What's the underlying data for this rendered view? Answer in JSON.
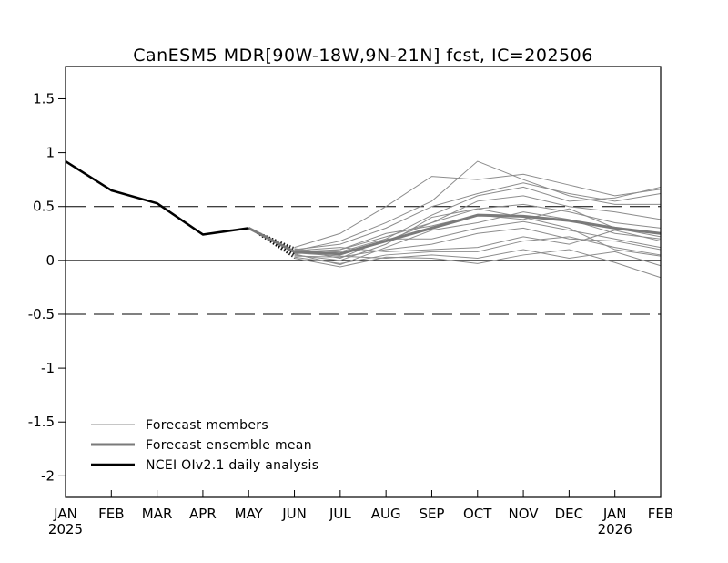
{
  "chart_data": {
    "type": "line",
    "title": "CanESM5 MDR[90W-18W,9N-21N] fcst, IC=202506",
    "xlabel": "",
    "ylabel": "",
    "ylim": [
      -2.2,
      1.8
    ],
    "yticks": [
      1.5,
      1,
      0.5,
      0,
      -0.5,
      -1,
      -1.5,
      -2
    ],
    "ytick_labels": [
      "1.5",
      "1",
      "0.5",
      "0",
      "-0.5",
      "-1",
      "-1.5",
      "-2"
    ],
    "x_months": [
      "JAN",
      "FEB",
      "MAR",
      "APR",
      "MAY",
      "JUN",
      "JUL",
      "AUG",
      "SEP",
      "OCT",
      "NOV",
      "DEC",
      "JAN",
      "FEB"
    ],
    "x_years": [
      {
        "index": 0,
        "label": "2025"
      },
      {
        "index": 12,
        "label": "2026"
      }
    ],
    "reference_lines": {
      "solid": [
        0
      ],
      "dashed": [
        0.5,
        -0.5
      ]
    },
    "legend": {
      "placement": "bottom-left",
      "entries": [
        {
          "name": "Forecast members",
          "color": "#8c8c8c"
        },
        {
          "name": "Forecast ensemble mean",
          "color": "#7a7a7a"
        },
        {
          "name": "NCEI OIv2.1 daily analysis",
          "color": "#000000"
        }
      ]
    },
    "series": [
      {
        "name": "NCEI OIv2.1 daily analysis",
        "color": "#000000",
        "x": [
          0,
          1,
          2,
          3,
          4
        ],
        "values": [
          0.92,
          0.65,
          0.53,
          0.24,
          0.3
        ]
      },
      {
        "name": "Forecast ensemble mean",
        "color": "#7a7a7a",
        "x": [
          5,
          6,
          7,
          8,
          9,
          10,
          11,
          12,
          13
        ],
        "values": [
          0.08,
          0.06,
          0.18,
          0.3,
          0.42,
          0.41,
          0.37,
          0.3,
          0.25
        ]
      },
      {
        "name": "Forecast members",
        "color": "#8c8c8c",
        "x": [
          5,
          6,
          7,
          8,
          9,
          10,
          11,
          12,
          13
        ],
        "members": [
          [
            0.12,
            0.25,
            0.5,
            0.78,
            0.75,
            0.8,
            0.7,
            0.6,
            0.66
          ],
          [
            0.09,
            0.18,
            0.35,
            0.55,
            0.92,
            0.75,
            0.6,
            0.52,
            0.52
          ],
          [
            0.1,
            0.15,
            0.3,
            0.5,
            0.62,
            0.72,
            0.62,
            0.55,
            0.62
          ],
          [
            0.07,
            0.08,
            0.2,
            0.42,
            0.6,
            0.68,
            0.55,
            0.58,
            0.68
          ],
          [
            0.11,
            0.05,
            0.18,
            0.35,
            0.55,
            0.6,
            0.5,
            0.45,
            0.38
          ],
          [
            0.05,
            0.0,
            0.15,
            0.4,
            0.48,
            0.52,
            0.45,
            0.35,
            0.3
          ],
          [
            0.08,
            0.1,
            0.25,
            0.32,
            0.42,
            0.38,
            0.48,
            0.3,
            0.22
          ],
          [
            0.06,
            -0.04,
            0.12,
            0.28,
            0.35,
            0.45,
            0.38,
            0.25,
            0.2
          ],
          [
            0.1,
            0.02,
            0.2,
            0.2,
            0.3,
            0.36,
            0.28,
            0.2,
            0.12
          ],
          [
            0.04,
            0.03,
            0.1,
            0.15,
            0.25,
            0.3,
            0.2,
            0.18,
            0.1
          ],
          [
            0.09,
            0.12,
            0.08,
            0.1,
            0.12,
            0.22,
            0.15,
            0.28,
            0.18
          ],
          [
            0.03,
            -0.03,
            0.05,
            0.08,
            0.08,
            0.18,
            0.22,
            0.12,
            0.05
          ],
          [
            0.07,
            0.04,
            0.02,
            0.05,
            0.02,
            0.1,
            0.02,
            0.08,
            -0.05
          ],
          [
            0.02,
            -0.06,
            0.03,
            0.02,
            -0.03,
            0.05,
            0.1,
            -0.02,
            -0.16
          ],
          [
            0.06,
            0.1,
            0.22,
            0.35,
            0.48,
            0.4,
            0.3,
            0.1,
            0.04
          ]
        ]
      }
    ],
    "grid": false
  }
}
